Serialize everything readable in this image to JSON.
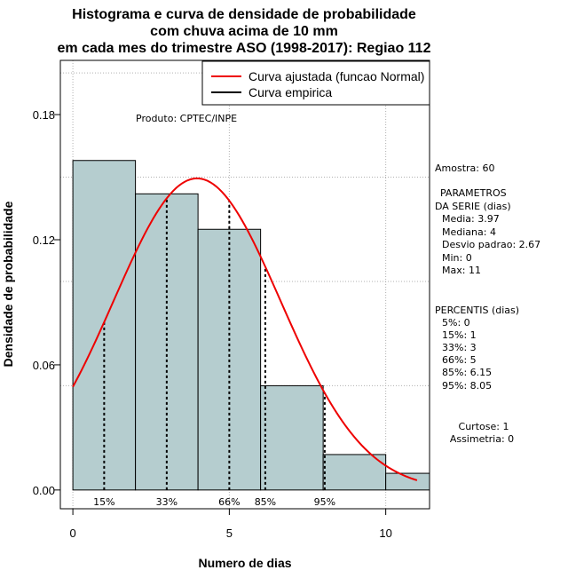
{
  "chart_data": {
    "type": "bar",
    "title_lines": [
      "Histograma e curva de densidade de probabilidade",
      "com chuva acima de 10 mm",
      "em cada mes do trimestre ASO (1998-2017): Regiao 112"
    ],
    "xlabel": "Numero de dias",
    "ylabel": "Densidade de probabilidade",
    "xlim": [
      -0.4,
      11.4
    ],
    "ylim": [
      -0.009,
      0.206
    ],
    "x_ticks": [
      0,
      5,
      10
    ],
    "y_ticks": [
      0.0,
      0.06,
      0.12,
      0.18
    ],
    "y_tick_labels": [
      "0.00",
      "0.06",
      "0.12",
      "0.18"
    ],
    "grid": true,
    "bins": [
      {
        "from": 0,
        "to": 2,
        "density": 0.158
      },
      {
        "from": 2,
        "to": 4,
        "density": 0.142
      },
      {
        "from": 4,
        "to": 6,
        "density": 0.125
      },
      {
        "from": 6,
        "to": 8,
        "density": 0.05
      },
      {
        "from": 8,
        "to": 10,
        "density": 0.017
      },
      {
        "from": 10,
        "to": 11.4,
        "density": 0.008
      }
    ],
    "bar_color": "#b5cdcf",
    "normal_curve": {
      "mean": 3.97,
      "sd": 2.67,
      "x_from": 0,
      "x_to": 11,
      "color": "#ee0000"
    },
    "percentile_lines": [
      {
        "label": "15%",
        "x": 1
      },
      {
        "label": "33%",
        "x": 3
      },
      {
        "label": "66%",
        "x": 5
      },
      {
        "label": "85%",
        "x": 6.15
      },
      {
        "label": "95%",
        "x": 8.05
      }
    ],
    "legend": {
      "placement": "top-right",
      "entries": [
        {
          "label": "Curva ajustada (funcao Normal)",
          "color": "#ee0000"
        },
        {
          "label": "Curva empirica",
          "color": "#000000"
        }
      ]
    },
    "product_label": "Produto: CPTEC/INPE"
  },
  "stats_panel": {
    "amostra": "Amostra: 60",
    "parametros_title_1": "PARAMETROS",
    "parametros_title_2": "DA SERIE (dias)",
    "media": "Media: 3.97",
    "mediana": "Mediana: 4",
    "desvio": "Desvio padrao: 2.67",
    "min": "Min: 0",
    "max": "Max: 11",
    "percentis_title": "PERCENTIS (dias)",
    "p5": "5%: 0",
    "p15": "15%: 1",
    "p33": "33%: 3",
    "p66": "66%: 5",
    "p85": "85%: 6.15",
    "p95": "95%: 8.05",
    "curtose": "Curtose: 1",
    "assimetria": "Assimetria: 0"
  }
}
